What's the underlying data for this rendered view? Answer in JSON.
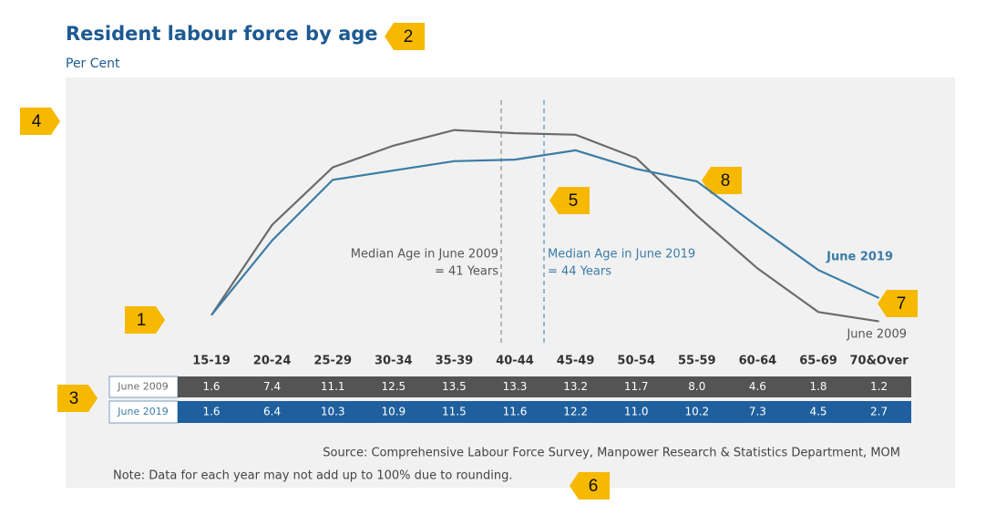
{
  "chart_data": {
    "type": "line",
    "title": "Resident labour force by age",
    "subtitle": "Per Cent",
    "categories": [
      "15-19",
      "20-24",
      "25-29",
      "30-34",
      "35-39",
      "40-44",
      "45-49",
      "50-54",
      "55-59",
      "60-64",
      "65-69",
      "70&Over"
    ],
    "series": [
      {
        "name": "June 2009",
        "color": "#6b6b6b",
        "table_color": "#545454",
        "values": [
          1.6,
          7.4,
          11.1,
          12.5,
          13.5,
          13.3,
          13.2,
          11.7,
          8.0,
          4.6,
          1.8,
          1.2
        ],
        "value_labels": [
          "1.6",
          "7.4",
          "11.1",
          "12.5",
          "13.5",
          "13.3",
          "13.2",
          "11.7",
          "8.0",
          "4.6",
          "1.8",
          "1.2"
        ]
      },
      {
        "name": "June 2019",
        "color": "#3b7ca6",
        "table_color": "#1f5f9e",
        "values": [
          1.6,
          6.4,
          10.3,
          10.9,
          11.5,
          11.6,
          12.2,
          11.0,
          10.2,
          7.3,
          4.5,
          2.7
        ],
        "value_labels": [
          "1.6",
          "6.4",
          "10.3",
          "10.9",
          "11.5",
          "11.6",
          "12.2",
          "11.0",
          "10.2",
          "7.3",
          "4.5",
          "2.7"
        ]
      }
    ],
    "annotations": [
      "Median Age in June 2009",
      "= 41 Years",
      "Median Age in June 2019",
      "= 44 Years"
    ],
    "source": "Source: Comprehensive Labour Force Survey, Manpower Research & Statistics Department, MOM",
    "note": "Note:  Data for each year may not add up to 100% due to rounding."
  },
  "callouts": [
    "1",
    "2",
    "3",
    "4",
    "5",
    "6",
    "7",
    "8"
  ]
}
